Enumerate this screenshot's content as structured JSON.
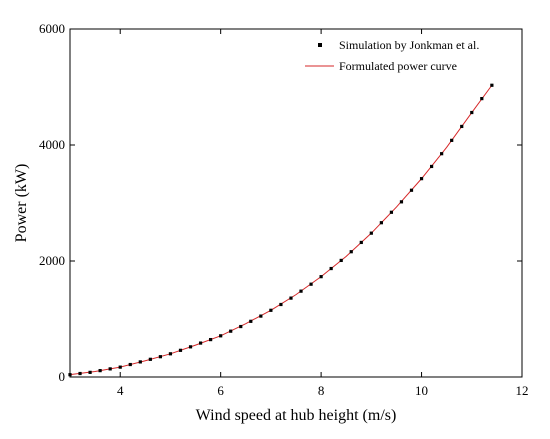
{
  "chart_data": {
    "type": "line",
    "title": "",
    "xlabel": "Wind speed at hub height (m/s)",
    "ylabel": "Power (kW)",
    "xlim": [
      3,
      12
    ],
    "ylim": [
      0,
      6000
    ],
    "xticks": [
      4,
      6,
      8,
      10,
      12
    ],
    "yticks": [
      0,
      2000,
      4000,
      6000
    ],
    "grid": false,
    "legend_position": "top-right",
    "series": [
      {
        "name": "Simulation by Jonkman et al.",
        "style": "square-markers",
        "color": "#000000",
        "x": [
          3.0,
          3.2,
          3.4,
          3.6,
          3.8,
          4.0,
          4.2,
          4.4,
          4.6,
          4.8,
          5.0,
          5.2,
          5.4,
          5.6,
          5.8,
          6.0,
          6.2,
          6.4,
          6.6,
          6.8,
          7.0,
          7.2,
          7.4,
          7.6,
          7.8,
          8.0,
          8.2,
          8.4,
          8.6,
          8.8,
          9.0,
          9.2,
          9.4,
          9.6,
          9.8,
          10.0,
          10.2,
          10.4,
          10.6,
          10.8,
          11.0,
          11.2,
          11.4
        ],
        "y": [
          40,
          60,
          80,
          110,
          140,
          170,
          215,
          260,
          305,
          350,
          400,
          460,
          520,
          585,
          645,
          710,
          790,
          870,
          960,
          1050,
          1150,
          1250,
          1360,
          1480,
          1600,
          1730,
          1870,
          2010,
          2160,
          2320,
          2480,
          2660,
          2840,
          3020,
          3220,
          3420,
          3630,
          3850,
          4080,
          4320,
          4560,
          4800,
          5030
        ]
      },
      {
        "name": "Formulated power curve",
        "style": "line",
        "color": "#d62728",
        "x": [
          3.0,
          3.5,
          4.0,
          4.5,
          5.0,
          5.5,
          6.0,
          6.5,
          7.0,
          7.5,
          8.0,
          8.5,
          9.0,
          9.5,
          10.0,
          10.5,
          11.0,
          11.4
        ],
        "y": [
          40,
          95,
          170,
          280,
          400,
          550,
          710,
          920,
          1150,
          1420,
          1730,
          2080,
          2480,
          2930,
          3420,
          3960,
          4560,
          5030
        ]
      }
    ]
  }
}
